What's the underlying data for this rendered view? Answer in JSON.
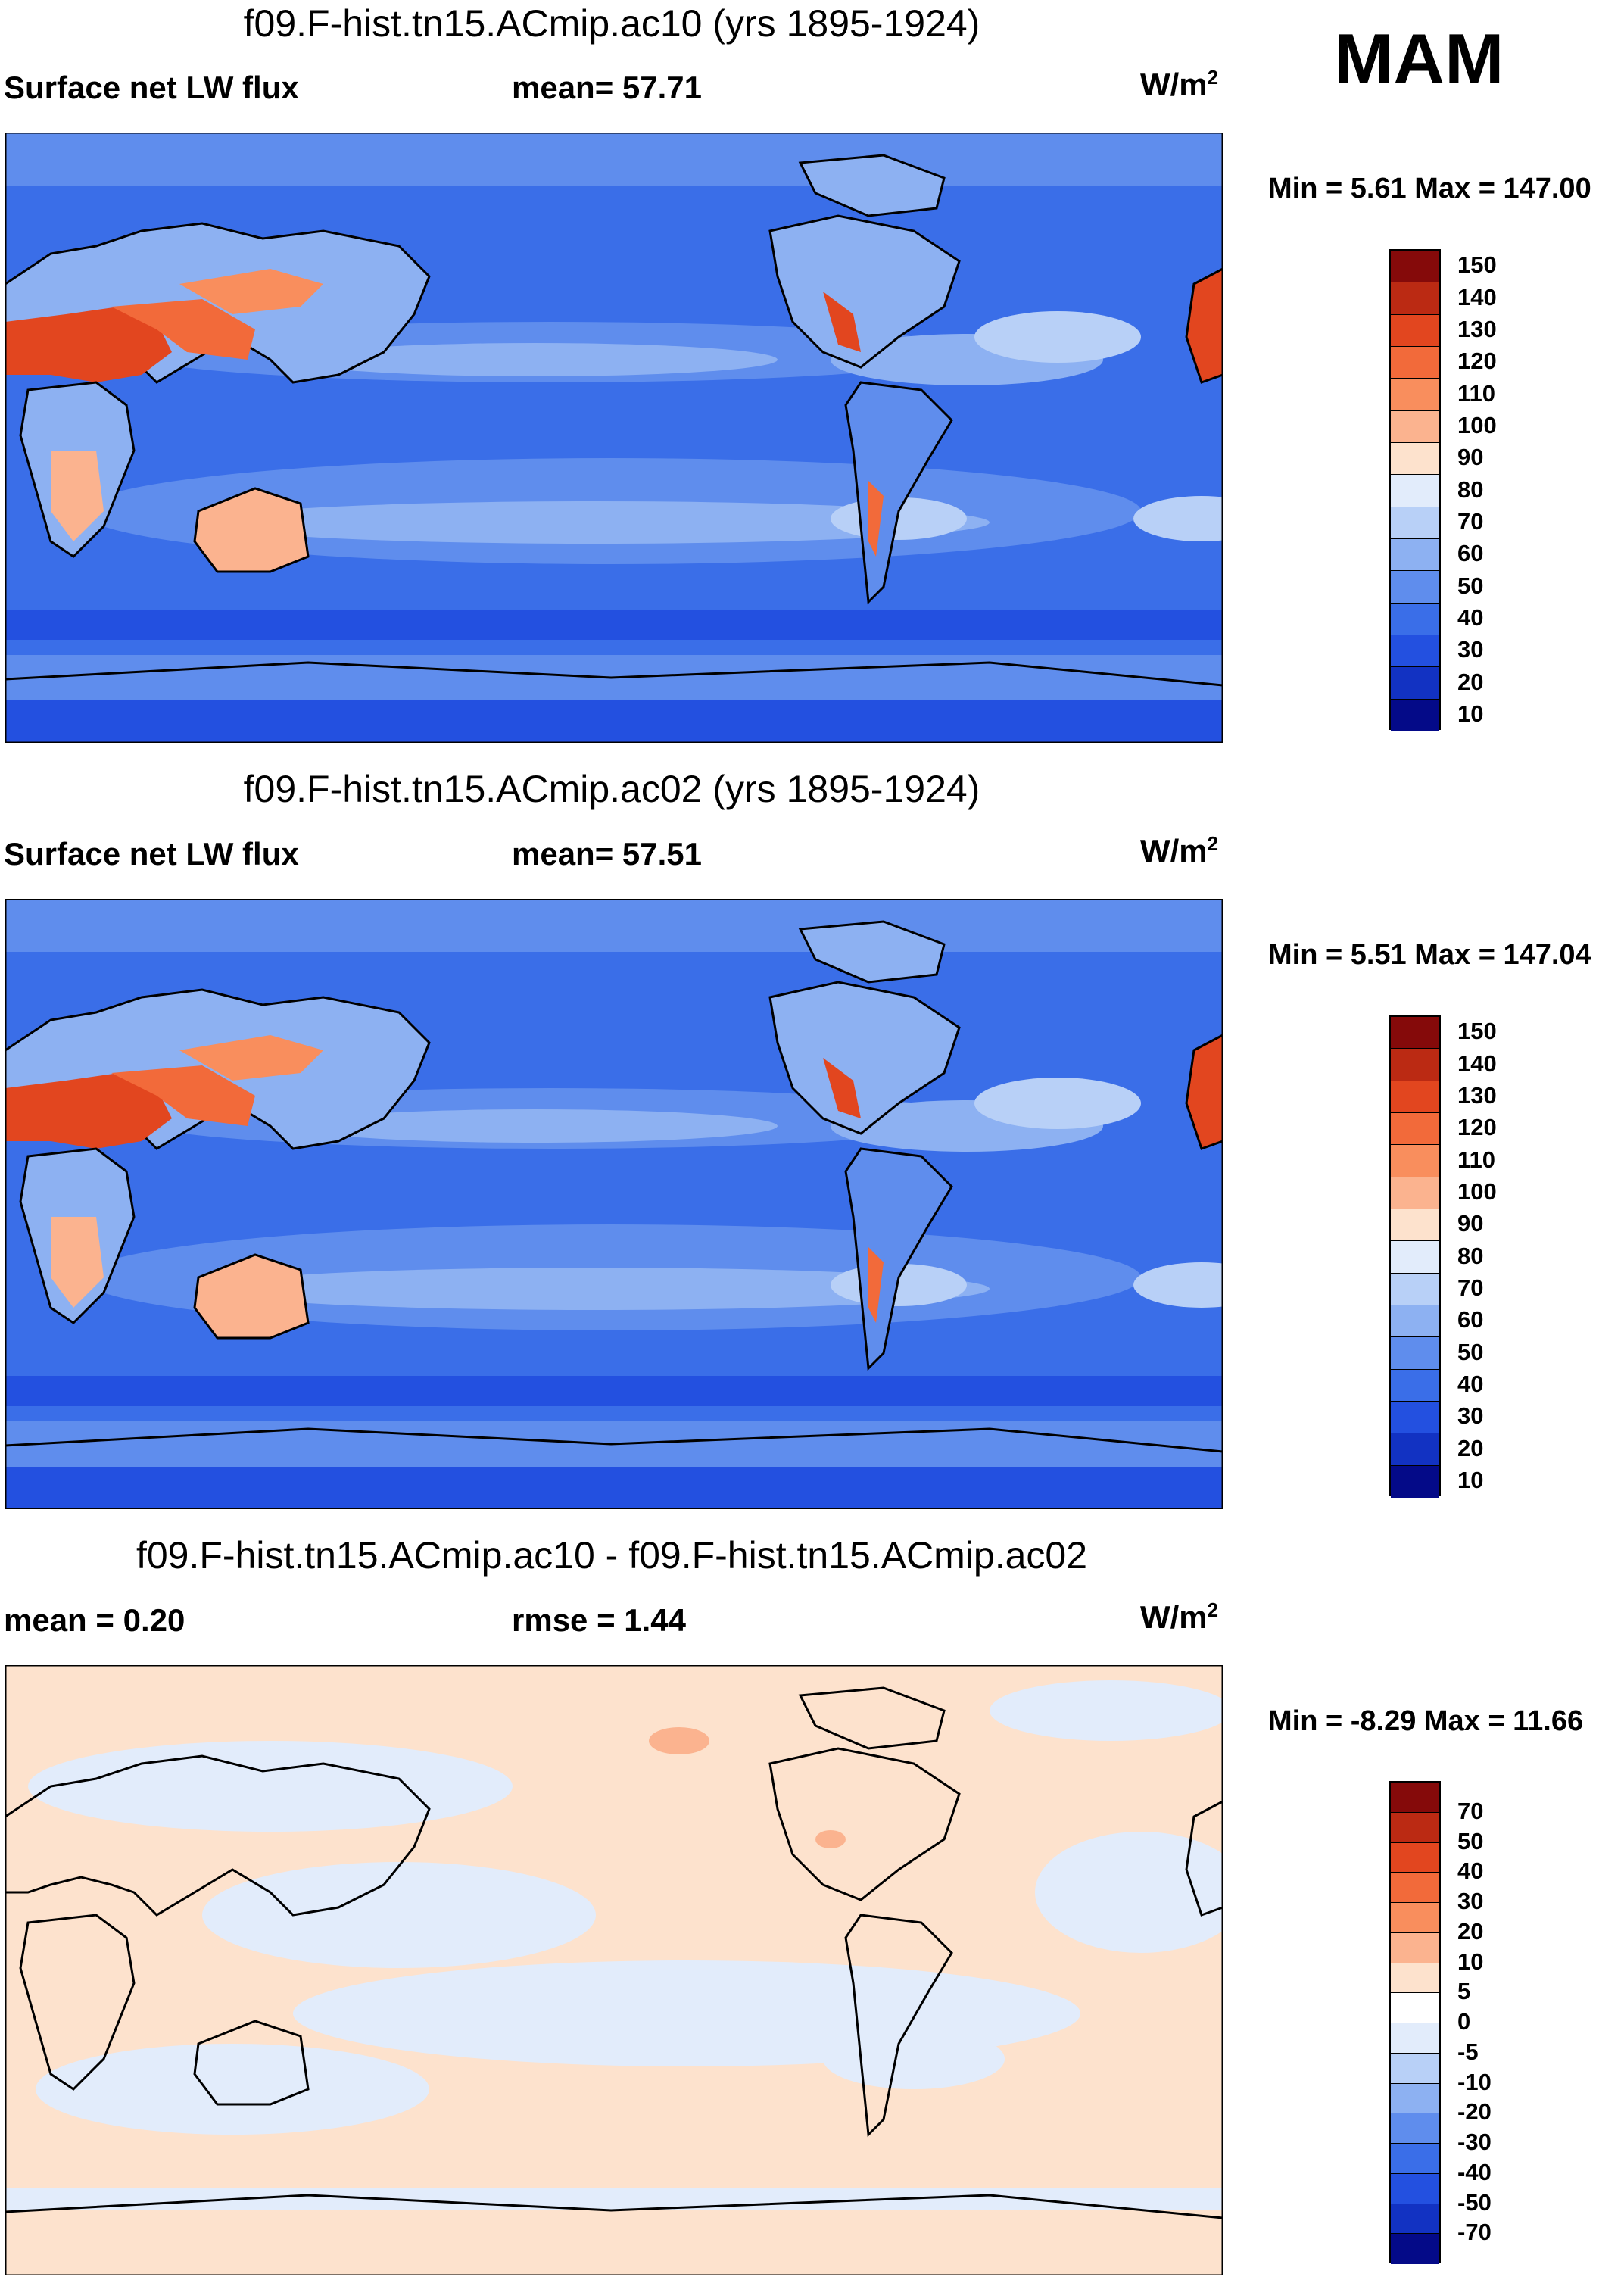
{
  "season": "MAM",
  "panels": [
    {
      "title": "f09.F-hist.tn15.ACmip.ac10 (yrs 1895-1924)",
      "left_label": "Surface net LW flux",
      "center_label": "mean=  57.71",
      "units_base": "W/m",
      "units_exp": "2",
      "minmax": "Min =   5.61 Max = 147.00",
      "colorbar": {
        "levels": [
          "150",
          "140",
          "130",
          "120",
          "110",
          "100",
          "90",
          "80",
          "70",
          "60",
          "50",
          "40",
          "30",
          "20",
          "10"
        ],
        "colors": [
          "#850a0a",
          "#bb2a13",
          "#e2461f",
          "#f26a3a",
          "#f98e5d",
          "#fbb38f",
          "#fde2cd",
          "#e2ecfb",
          "#b8d0f7",
          "#8db1f2",
          "#5f8ded",
          "#3a6ee8",
          "#2350e0",
          "#1232c2",
          "#040a88"
        ]
      }
    },
    {
      "title": "f09.F-hist.tn15.ACmip.ac02 (yrs 1895-1924)",
      "left_label": "Surface net LW flux",
      "center_label": "mean=  57.51",
      "units_base": "W/m",
      "units_exp": "2",
      "minmax": "Min =   5.51 Max = 147.04",
      "colorbar": {
        "levels": [
          "150",
          "140",
          "130",
          "120",
          "110",
          "100",
          "90",
          "80",
          "70",
          "60",
          "50",
          "40",
          "30",
          "20",
          "10"
        ],
        "colors": [
          "#850a0a",
          "#bb2a13",
          "#e2461f",
          "#f26a3a",
          "#f98e5d",
          "#fbb38f",
          "#fde2cd",
          "#e2ecfb",
          "#b8d0f7",
          "#8db1f2",
          "#5f8ded",
          "#3a6ee8",
          "#2350e0",
          "#1232c2",
          "#040a88"
        ]
      }
    },
    {
      "title": "f09.F-hist.tn15.ACmip.ac10 - f09.F-hist.tn15.ACmip.ac02",
      "left_label": "mean =   0.20",
      "center_label": "rmse =   1.44",
      "units_base": "W/m",
      "units_exp": "2",
      "minmax": "Min =  -8.29 Max =  11.66",
      "colorbar": {
        "levels": [
          "70",
          "50",
          "40",
          "30",
          "20",
          "10",
          "5",
          "0",
          "-5",
          "-10",
          "-20",
          "-30",
          "-40",
          "-50",
          "-70"
        ],
        "colors": [
          "#850a0a",
          "#bb2a13",
          "#e2461f",
          "#f26a3a",
          "#f98e5d",
          "#fbb38f",
          "#fde2cd",
          "#ffffff",
          "#e2ecfb",
          "#b8d0f7",
          "#8db1f2",
          "#5f8ded",
          "#3a6ee8",
          "#2350e0",
          "#1232c2",
          "#040a88"
        ]
      }
    }
  ]
}
